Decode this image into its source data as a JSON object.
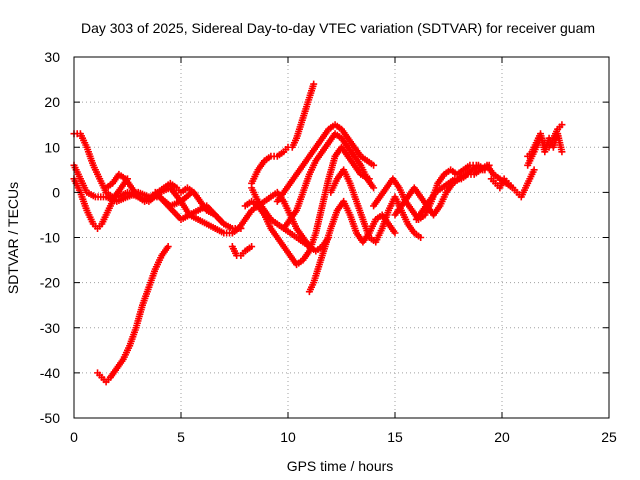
{
  "chart_data": {
    "type": "scatter",
    "title": "Day 303 of 2025, Sidereal Day-to-day VTEC variation (SDTVAR) for receiver guam",
    "xlabel": "GPS time / hours",
    "ylabel": "SDTVAR / TECUs",
    "xlim": [
      0,
      25
    ],
    "ylim": [
      -50,
      30
    ],
    "xticks": [
      0,
      5,
      10,
      15,
      20,
      25
    ],
    "yticks": [
      -50,
      -40,
      -30,
      -20,
      -10,
      0,
      10,
      20,
      30
    ],
    "grid": true,
    "marker": "+",
    "color": "#ff0000",
    "series": [
      {
        "x": [
          0.0,
          0.3,
          0.6,
          0.9,
          1.1,
          1.3,
          1.6,
          1.9,
          2.2,
          2.5
        ],
        "y": [
          3,
          0,
          -4,
          -7,
          -8,
          -7,
          -4,
          -1,
          1,
          3
        ]
      },
      {
        "x": [
          0.0,
          0.3,
          0.6,
          0.9,
          1.2,
          1.5,
          1.8,
          2.1,
          2.5,
          3.0,
          3.5,
          4.0,
          4.5,
          5.0,
          5.4,
          5.8,
          6.2,
          6.6,
          7.0,
          7.4
        ],
        "y": [
          13,
          13,
          10,
          6,
          3,
          0,
          -1,
          -1,
          0,
          -1,
          -2,
          0,
          1,
          -2,
          -5,
          -6,
          -7,
          -8,
          -9,
          -9
        ]
      },
      {
        "x": [
          0.0,
          0.3,
          0.6,
          1.0,
          1.5,
          2.0,
          2.5,
          3.0,
          3.5,
          4.0,
          4.5,
          5.0,
          5.5
        ],
        "y": [
          6,
          3,
          0,
          -1,
          -1,
          -2,
          -1,
          0,
          -1,
          -1,
          -3,
          -2,
          0
        ]
      },
      {
        "x": [
          1.1,
          1.3,
          1.5,
          1.7,
          2.0,
          2.3,
          2.6,
          2.9,
          3.2,
          3.5,
          3.8,
          4.1,
          4.4
        ],
        "y": [
          -40,
          -41,
          -42,
          -41,
          -39,
          -37,
          -34,
          -30,
          -25,
          -21,
          -17,
          -14,
          -12
        ]
      },
      {
        "x": [
          1.5,
          1.8,
          2.1,
          2.4,
          2.7,
          3.0,
          3.3,
          3.6,
          3.9,
          4.2,
          4.5,
          4.8,
          5.0,
          5.3,
          5.6,
          5.9,
          6.2,
          6.6,
          7.0
        ],
        "y": [
          1,
          2,
          4,
          3,
          1,
          -1,
          -2,
          -1,
          0,
          1,
          2,
          1,
          0,
          1,
          0,
          -2,
          -4,
          -5,
          -7
        ]
      },
      {
        "x": [
          3.8,
          4.2,
          4.6,
          5.0,
          5.4,
          5.8,
          6.2,
          6.6,
          7.0,
          7.4,
          7.8
        ],
        "y": [
          0,
          -2,
          -4,
          -6,
          -5,
          -4,
          -3,
          -5,
          -7,
          -8,
          -8
        ]
      },
      {
        "x": [
          7.4,
          7.6,
          7.8,
          8.0,
          8.3
        ],
        "y": [
          -12,
          -14,
          -14,
          -13,
          -12
        ]
      },
      {
        "x": [
          7.4,
          7.7,
          8.0,
          8.3,
          8.6,
          8.9,
          9.2,
          9.5,
          9.8,
          10.1,
          10.4,
          10.7,
          11.0
        ],
        "y": [
          -9,
          -8,
          -6,
          -4,
          -3,
          -2,
          -1,
          0,
          -2,
          -5,
          -8,
          -10,
          -12
        ]
      },
      {
        "x": [
          8.0,
          8.3,
          8.6,
          8.9,
          9.2,
          9.5,
          9.8,
          10.1,
          10.4,
          10.7,
          11.0,
          11.3,
          11.6,
          11.9,
          12.2,
          12.5,
          12.8,
          13.1,
          13.4,
          13.8
        ],
        "y": [
          -3,
          -2,
          -3,
          -5,
          -8,
          -10,
          -12,
          -14,
          -16,
          -15,
          -13,
          -9,
          -3,
          3,
          8,
          10,
          8,
          6,
          4,
          3
        ]
      },
      {
        "x": [
          8.3,
          8.6,
          8.9,
          9.2,
          9.5,
          9.8,
          10.1,
          10.4,
          10.7,
          11.0,
          11.3,
          11.6,
          11.9
        ],
        "y": [
          1,
          -2,
          -4,
          -6,
          -7,
          -8,
          -9,
          -10,
          -11,
          -12,
          -13,
          -12,
          -10
        ]
      },
      {
        "x": [
          8.3,
          8.6,
          8.9,
          9.2,
          9.5,
          9.8,
          10.0,
          10.2,
          10.4,
          10.6,
          10.8,
          11.0,
          11.2
        ],
        "y": [
          2,
          5,
          7,
          8,
          8,
          9,
          10,
          10,
          12,
          15,
          18,
          21,
          24
        ]
      },
      {
        "x": [
          9.5,
          9.8,
          10.1,
          10.4,
          10.7,
          11.0,
          11.3,
          11.6,
          11.9,
          12.2,
          12.5,
          12.8,
          13.1,
          13.4,
          13.7,
          14.0
        ],
        "y": [
          -2,
          0,
          2,
          4,
          6,
          8,
          10,
          12,
          14,
          15,
          14,
          12,
          10,
          8,
          7,
          6
        ]
      },
      {
        "x": [
          9.8,
          10.1,
          10.4,
          10.7,
          11.0,
          11.3,
          11.6,
          11.9,
          12.2,
          12.5,
          12.8,
          13.1,
          13.4,
          13.7,
          14.0
        ],
        "y": [
          -8,
          -6,
          -4,
          0,
          4,
          7,
          9,
          11,
          13,
          12,
          10,
          8,
          6,
          3,
          1
        ]
      },
      {
        "x": [
          11.0,
          11.2,
          11.4,
          11.6,
          11.8,
          12.0,
          12.3,
          12.6,
          12.9,
          13.2,
          13.5,
          13.8,
          14.1,
          14.4,
          14.7,
          15.0
        ],
        "y": [
          -22,
          -20,
          -17,
          -14,
          -11,
          -8,
          -4,
          -2,
          -5,
          -9,
          -11,
          -9,
          -6,
          -5,
          -7,
          -9
        ]
      },
      {
        "x": [
          12.0,
          12.3,
          12.6,
          12.9,
          13.2,
          13.5,
          13.8,
          14.1,
          14.4,
          14.7,
          15.0,
          15.3,
          15.6,
          15.9,
          16.2
        ],
        "y": [
          0,
          3,
          5,
          2,
          -2,
          -6,
          -10,
          -11,
          -8,
          -4,
          -1,
          -4,
          -7,
          -9,
          -10
        ]
      },
      {
        "x": [
          14.0,
          14.3,
          14.6,
          14.9,
          15.2,
          15.5,
          15.8,
          16.1,
          16.4,
          16.7,
          17.0,
          17.3,
          17.6,
          17.9,
          18.2,
          18.5,
          18.8,
          19.1,
          19.4
        ],
        "y": [
          -3,
          -1,
          1,
          3,
          1,
          -2,
          -4,
          -6,
          -5,
          -2,
          2,
          4,
          5,
          4,
          5,
          6,
          6,
          5,
          6
        ]
      },
      {
        "x": [
          15.0,
          15.3,
          15.6,
          15.9,
          16.2,
          16.5,
          16.8,
          17.1,
          17.4,
          17.7,
          18.0,
          18.3,
          18.6,
          18.9,
          19.2
        ],
        "y": [
          -5,
          -3,
          -1,
          1,
          -1,
          -3,
          -5,
          -3,
          0,
          2,
          3,
          4,
          5,
          6,
          5
        ]
      },
      {
        "x": [
          16.0,
          16.3,
          16.6,
          16.9,
          17.2,
          17.5,
          17.8,
          18.1,
          18.4,
          18.7,
          19.0,
          19.3,
          19.6,
          19.9,
          20.2,
          20.5
        ],
        "y": [
          -6,
          -4,
          -2,
          0,
          1,
          2,
          3,
          3,
          4,
          4,
          5,
          6,
          4,
          3,
          2,
          1
        ]
      },
      {
        "x": [
          19.5,
          19.7,
          19.9,
          20.1,
          20.3,
          20.5,
          20.7,
          20.9,
          21.1,
          21.3,
          21.5
        ],
        "y": [
          3,
          2,
          1,
          3,
          2,
          1,
          0,
          -1,
          1,
          3,
          5
        ]
      },
      {
        "x": [
          21.2,
          21.4,
          21.6,
          21.8,
          22.0,
          22.2,
          22.4,
          22.6,
          22.8
        ],
        "y": [
          6,
          8,
          10,
          12,
          11,
          10,
          12,
          14,
          15
        ]
      },
      {
        "x": [
          21.2,
          21.4,
          21.6,
          21.8,
          22.0,
          22.2,
          22.4,
          22.6,
          22.8
        ],
        "y": [
          8,
          9,
          11,
          13,
          9,
          12,
          10,
          13,
          9
        ]
      }
    ]
  }
}
